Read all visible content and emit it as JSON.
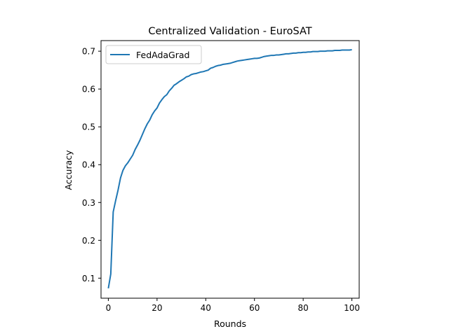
{
  "chart_data": {
    "type": "line",
    "title": "Centralized Validation - EuroSAT",
    "xlabel": "Rounds",
    "ylabel": "Accuracy",
    "xlim": [
      -3,
      103
    ],
    "ylim": [
      0.047,
      0.728
    ],
    "xticks": [
      0,
      20,
      40,
      60,
      80,
      100
    ],
    "yticks": [
      0.1,
      0.2,
      0.3,
      0.4,
      0.5,
      0.6,
      0.7
    ],
    "ytick_labels": [
      "0.1",
      "0.2",
      "0.3",
      "0.4",
      "0.5",
      "0.6",
      "0.7"
    ],
    "xtick_labels": [
      "0",
      "20",
      "40",
      "60",
      "80",
      "100"
    ],
    "grid": false,
    "legend": "upper-left",
    "series": [
      {
        "name": "FedAdaGrad",
        "color": "#1f77b4",
        "x": [
          0,
          1,
          2,
          3,
          4,
          5,
          6,
          7,
          8,
          9,
          10,
          11,
          12,
          13,
          14,
          15,
          16,
          17,
          18,
          19,
          20,
          21,
          22,
          23,
          24,
          25,
          26,
          27,
          28,
          29,
          30,
          31,
          32,
          33,
          34,
          35,
          36,
          37,
          38,
          39,
          40,
          41,
          42,
          43,
          44,
          45,
          46,
          47,
          48,
          49,
          50,
          51,
          52,
          53,
          54,
          55,
          56,
          57,
          58,
          59,
          60,
          61,
          62,
          63,
          64,
          65,
          66,
          67,
          68,
          69,
          70,
          71,
          72,
          73,
          74,
          75,
          76,
          77,
          78,
          79,
          80,
          81,
          82,
          83,
          84,
          85,
          86,
          87,
          88,
          89,
          90,
          91,
          92,
          93,
          94,
          95,
          96,
          97,
          98,
          99,
          100
        ],
        "values": [
          0.073,
          0.111,
          0.275,
          0.305,
          0.333,
          0.365,
          0.385,
          0.397,
          0.405,
          0.415,
          0.425,
          0.44,
          0.452,
          0.465,
          0.48,
          0.495,
          0.508,
          0.518,
          0.532,
          0.542,
          0.55,
          0.563,
          0.572,
          0.58,
          0.585,
          0.595,
          0.602,
          0.61,
          0.614,
          0.619,
          0.623,
          0.627,
          0.632,
          0.634,
          0.638,
          0.64,
          0.641,
          0.643,
          0.645,
          0.646,
          0.648,
          0.65,
          0.655,
          0.657,
          0.66,
          0.662,
          0.663,
          0.665,
          0.666,
          0.667,
          0.668,
          0.67,
          0.672,
          0.674,
          0.675,
          0.676,
          0.677,
          0.678,
          0.679,
          0.68,
          0.681,
          0.681,
          0.682,
          0.684,
          0.686,
          0.687,
          0.688,
          0.689,
          0.689,
          0.69,
          0.69,
          0.691,
          0.692,
          0.693,
          0.693,
          0.694,
          0.695,
          0.695,
          0.696,
          0.696,
          0.697,
          0.697,
          0.698,
          0.698,
          0.699,
          0.699,
          0.699,
          0.7,
          0.7,
          0.7,
          0.701,
          0.701,
          0.701,
          0.702,
          0.702,
          0.702,
          0.703,
          0.703,
          0.703,
          0.703,
          0.704
        ]
      }
    ]
  }
}
